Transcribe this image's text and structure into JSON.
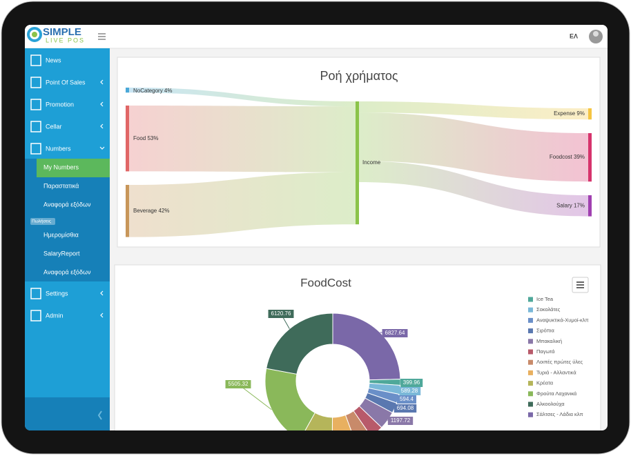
{
  "header": {
    "logo_top": "SIMPLE",
    "logo_bottom": "LIVE POS",
    "language": "ΕΛ"
  },
  "sidebar": {
    "items": [
      "News",
      "Point Of Sales",
      "Promotion",
      "Cellar",
      "Numbers"
    ],
    "numbers_submenu": [
      "My Numbers",
      "Παραστατικά",
      "Αναφορά εξόδων"
    ],
    "group_label": "Πωλήσεις",
    "group_items": [
      "Ημερομίσθια",
      "SalaryReport",
      "Αναφορά εξόδων"
    ],
    "bottom_items": [
      "Settings",
      "Admin"
    ]
  },
  "sankey": {
    "title": "Ροή χρήματος",
    "sources": [
      {
        "label": "NoCategory 4%",
        "value": 4,
        "color": "#4aa8d8"
      },
      {
        "label": "Food 53%",
        "value": 53,
        "color": "#e06666"
      },
      {
        "label": "Beverage 42%",
        "value": 42,
        "color": "#c8965a"
      }
    ],
    "hub": {
      "label": "Income",
      "value": 99,
      "color": "#8bc34a"
    },
    "targets": [
      {
        "label": "Expense 9%",
        "value": 9,
        "color": "#f5c542"
      },
      {
        "label": "Foodcost 39%",
        "value": 39,
        "color": "#d6336c"
      },
      {
        "label": "Salary 17%",
        "value": 17,
        "color": "#a040b0"
      }
    ]
  },
  "donut": {
    "title": "FoodCost",
    "slices": [
      {
        "name": "Ice Tea",
        "value": 399.96,
        "color": "#4fa89a"
      },
      {
        "name": "Σοκολάτες",
        "value": 589.28,
        "color": "#7ab8d8"
      },
      {
        "name": "Αναψυκτικά-Χυμοί-κλπ",
        "value": 594.4,
        "color": "#6a8fc8"
      },
      {
        "name": "Σιρόπια",
        "value": 694.08,
        "color": "#5a78b0"
      },
      {
        "name": "Μπακαλική",
        "value": 1197.72,
        "color": "#8a78a8"
      },
      {
        "name": "Παγωτά",
        "value": 900,
        "color": "#b85a6a"
      },
      {
        "name": "Λοιπές πρώτες ύλες",
        "value": 1100,
        "color": "#c88a6a"
      },
      {
        "name": "Τυριά - Αλλαντικά",
        "value": 1600,
        "color": "#e8b060"
      },
      {
        "name": "Κρέατα",
        "value": 2200,
        "color": "#b5b55a"
      },
      {
        "name": "Φρούτα Λαχανικά",
        "value": 5505.32,
        "color": "#8ab85a"
      },
      {
        "name": "Αλκοολούχα",
        "value": 6120.76,
        "color": "#3f6b5a"
      },
      {
        "name": "Σάλτσες - Λάδια κλπ",
        "value": 6827.64,
        "color": "#7a68a8"
      }
    ]
  }
}
